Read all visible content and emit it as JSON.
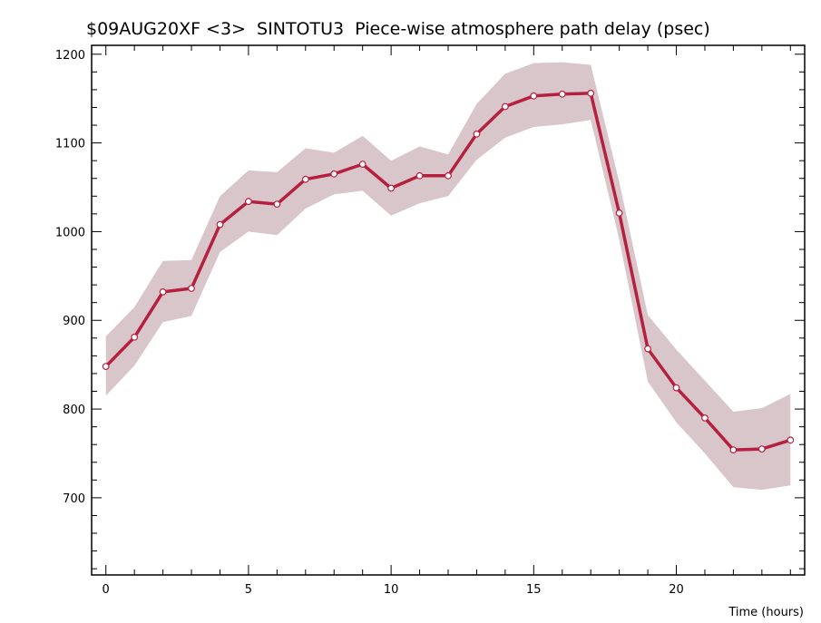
{
  "chart_data": {
    "type": "line",
    "title": "$09AUG20XF <3>  SINTOTU3  Piece-wise atmosphere path delay (psec)",
    "xlabel": "Time (hours)",
    "ylabel": "",
    "xlim": [
      -0.5,
      24.5
    ],
    "ylim": [
      613,
      1210
    ],
    "x_ticks": [
      0,
      5,
      10,
      15,
      20
    ],
    "y_ticks": [
      700,
      800,
      900,
      1000,
      1100,
      1200
    ],
    "grid": false,
    "colors": {
      "line": "#b5203f",
      "band": "#d9c6cb",
      "marker_fill": "#ffffff"
    },
    "series": [
      {
        "x": [
          0,
          1,
          2,
          3,
          4,
          5,
          6,
          7,
          8,
          9,
          10,
          11,
          12,
          13,
          14,
          15,
          16,
          17,
          18,
          19,
          20,
          21,
          22,
          23,
          24
        ],
        "values": [
          848,
          881,
          932,
          936,
          1008,
          1034,
          1031,
          1059,
          1065,
          1076,
          1049,
          1063,
          1063,
          1110,
          1141,
          1153,
          1155,
          1156,
          1021,
          868,
          824,
          790,
          754,
          755,
          765
        ],
        "band_upper": [
          882,
          915,
          967,
          968,
          1040,
          1069,
          1067,
          1094,
          1089,
          1108,
          1080,
          1096,
          1087,
          1144,
          1178,
          1190,
          1191,
          1188,
          1056,
          906,
          867,
          832,
          797,
          801,
          817
        ],
        "band_lower": [
          815,
          849,
          898,
          905,
          977,
          1000,
          996,
          1026,
          1042,
          1046,
          1018,
          1032,
          1040,
          1081,
          1106,
          1118,
          1121,
          1126,
          991,
          831,
          785,
          750,
          712,
          709,
          714
        ]
      }
    ]
  }
}
